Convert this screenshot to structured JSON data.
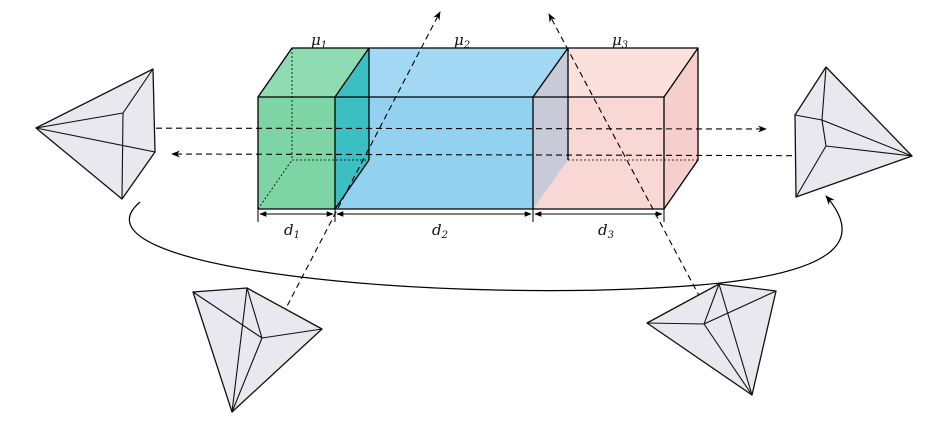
{
  "labels": {
    "mu1": "μ",
    "mu1_sub": "1",
    "mu2": "μ",
    "mu2_sub": "2",
    "mu3": "μ",
    "mu3_sub": "3",
    "d1": "d",
    "d1_sub": "1",
    "d2": "d",
    "d2_sub": "2",
    "d3": "d",
    "d3_sub": "3"
  },
  "colors": {
    "slab1": "#7dd5a6",
    "slab2": "#93d1f0",
    "slab3": "#f9d7d5",
    "slab1_top": "#8fdcb3",
    "slab2_top": "#a2d8f3",
    "slab3_top": "#fbe0de",
    "camera": "#e9e8ee"
  }
}
